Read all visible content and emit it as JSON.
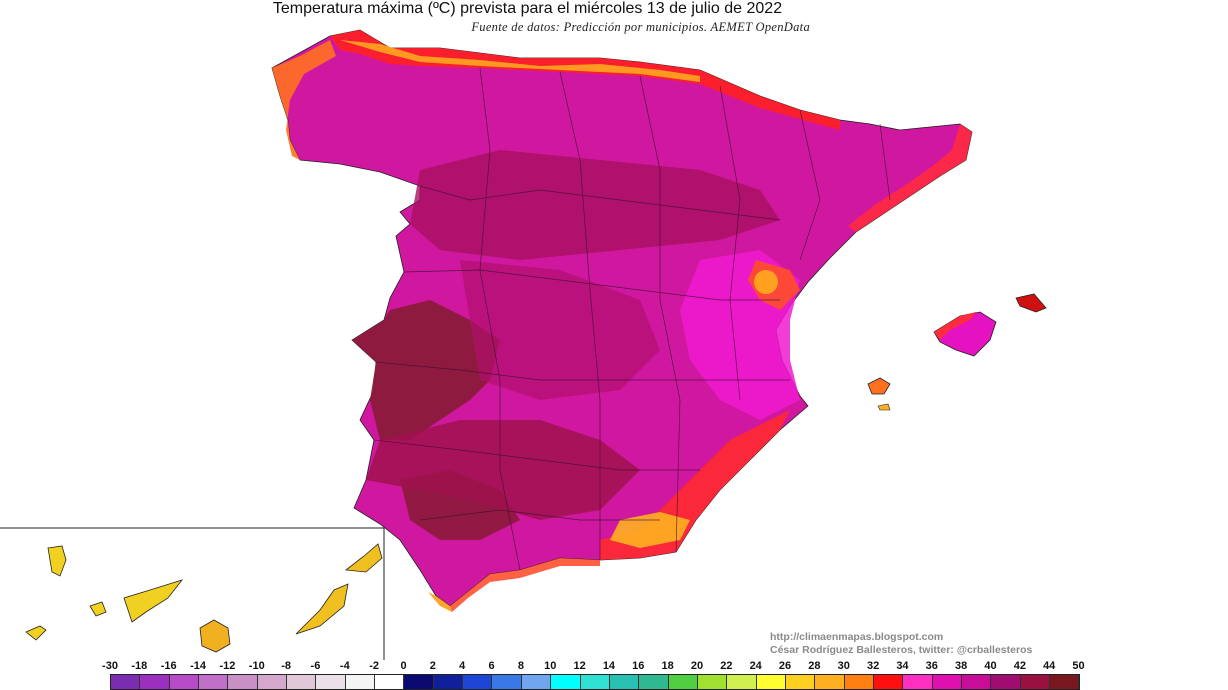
{
  "map": {
    "title": "Temperatura máxima (ºC) prevista para el miércoles 13 de julio de 2022",
    "subtitle": "Fuente de datos: Predicción por municipios. AEMET OpenData",
    "credits": {
      "url": "http://climaenmapas.blogspot.com",
      "author": "César Rodríguez Ballesteros, twitter: @crballesteros"
    },
    "regions": [
      "Peninsula",
      "Baleares",
      "Canarias"
    ],
    "dominant_colors": {
      "interior_hot_45": "#8b1a3a",
      "hot_40": "#b0106e",
      "warm_36": "#e012b4",
      "coast_32": "#e0201c",
      "coast_28": "#f0a020",
      "canarias_24": "#f0e020"
    }
  },
  "legend": {
    "labels": [
      "-30",
      "-18",
      "-16",
      "-14",
      "-12",
      "-10",
      "-8",
      "-6",
      "-4",
      "-2",
      "0",
      "2",
      "4",
      "6",
      "8",
      "10",
      "12",
      "14",
      "16",
      "18",
      "20",
      "22",
      "24",
      "26",
      "28",
      "30",
      "32",
      "34",
      "36",
      "38",
      "40",
      "42",
      "44",
      "50"
    ],
    "colors": [
      "#7a2db0",
      "#9b30c0",
      "#b84cc8",
      "#c070c8",
      "#c890c4",
      "#d4a8cc",
      "#e0c8d8",
      "#ece0e8",
      "#f4f4f4",
      "#ffffff",
      "#0a0a70",
      "#10209a",
      "#1e46d6",
      "#3a78e8",
      "#70a6f0",
      "#00ffff",
      "#30e0d0",
      "#28c0b0",
      "#30b890",
      "#50d040",
      "#a0e030",
      "#d0f050",
      "#ffff30",
      "#ffd020",
      "#ffb020",
      "#ff8010",
      "#ff1010",
      "#ff30c0",
      "#e010b0",
      "#c80e98",
      "#a00c70",
      "#9a1040",
      "#7a1820"
    ]
  }
}
